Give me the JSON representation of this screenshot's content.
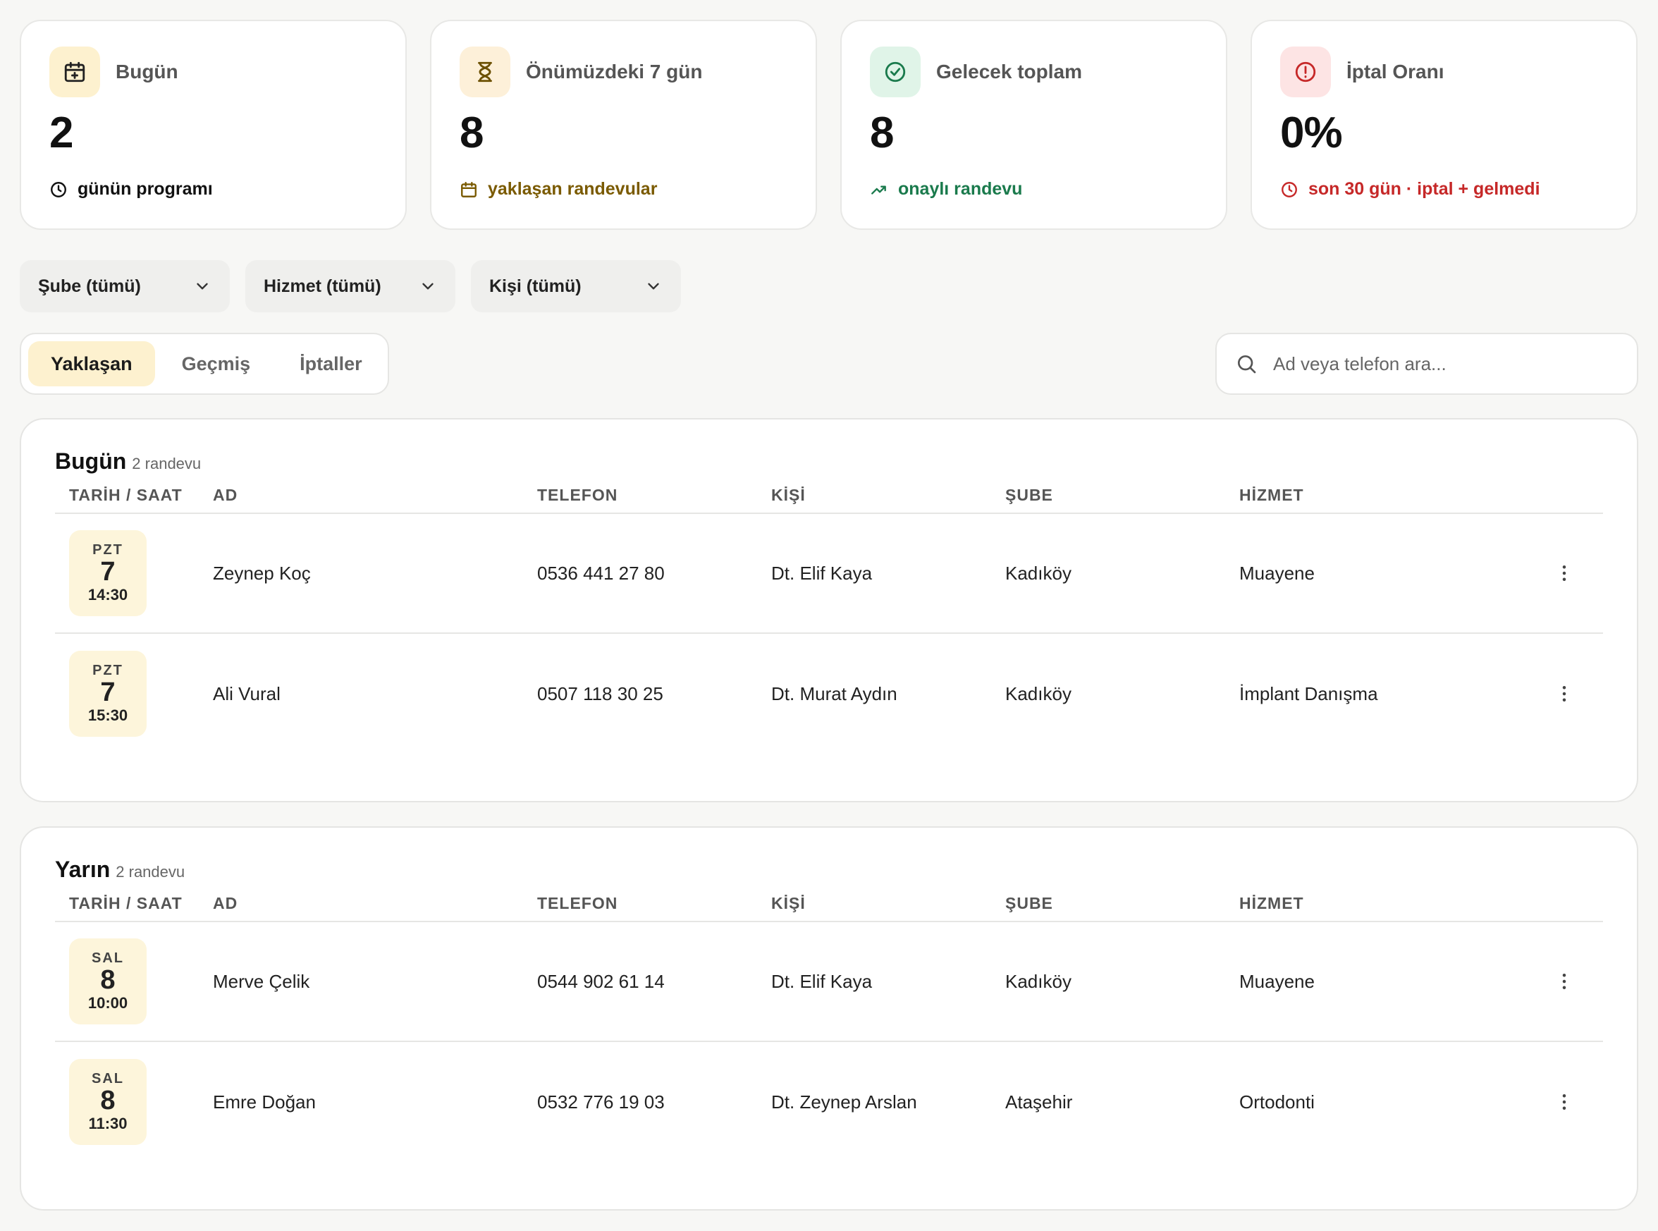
{
  "colors": {
    "accent_yellow": "#fdf1cf",
    "amber_text": "#7a5a00",
    "green_text": "#1a7a4c",
    "red_text": "#c62828"
  },
  "stats": [
    {
      "icon": "calendar-plus-icon",
      "title": "Bugün",
      "value": "2",
      "sub_icon": "clock-icon",
      "sub": "günün programı"
    },
    {
      "icon": "hourglass-icon",
      "title": "Önümüzdeki 7 gün",
      "value": "8",
      "sub_icon": "calendar-icon",
      "sub": "yaklaşan randevular"
    },
    {
      "icon": "check-circle-icon",
      "title": "Gelecek toplam",
      "value": "8",
      "sub_icon": "trending-up-icon",
      "sub": "onaylı randevu"
    },
    {
      "icon": "alert-circle-icon",
      "title": "İptal Oranı",
      "value": "0%",
      "sub_icon": "clock-icon",
      "sub": "son 30 gün · iptal + gelmedi"
    }
  ],
  "filters": [
    "Şube (tümü)",
    "Hizmet (tümü)",
    "Kişi (tümü)"
  ],
  "tabs": [
    {
      "label": "Yaklaşan",
      "active": true
    },
    {
      "label": "Geçmiş",
      "active": false
    },
    {
      "label": "İptaller",
      "active": false
    }
  ],
  "search": {
    "placeholder": "Ad veya telefon ara..."
  },
  "columns": [
    "TARİH / SAAT",
    "AD",
    "TELEFON",
    "KİŞİ",
    "ŞUBE",
    "HİZMET"
  ],
  "groups": [
    {
      "title": "Bugün",
      "count": "2 randevu",
      "rows": [
        {
          "dow": "PZT",
          "day": "7",
          "time": "14:30",
          "name": "Zeynep Koç",
          "phone": "0536 441 27 80",
          "person": "Dt. Elif Kaya",
          "branch": "Kadıköy",
          "service": "Muayene"
        },
        {
          "dow": "PZT",
          "day": "7",
          "time": "15:30",
          "name": "Ali Vural",
          "phone": "0507 118 30 25",
          "person": "Dt. Murat Aydın",
          "branch": "Kadıköy",
          "service": "İmplant Danışma"
        }
      ]
    },
    {
      "title": "Yarın",
      "count": "2 randevu",
      "rows": [
        {
          "dow": "SAL",
          "day": "8",
          "time": "10:00",
          "name": "Merve Çelik",
          "phone": "0544 902 61 14",
          "person": "Dt. Elif Kaya",
          "branch": "Kadıköy",
          "service": "Muayene"
        },
        {
          "dow": "SAL",
          "day": "8",
          "time": "11:30",
          "name": "Emre Doğan",
          "phone": "0532 776 19 03",
          "person": "Dt. Zeynep Arslan",
          "branch": "Ataşehir",
          "service": "Ortodonti"
        }
      ]
    }
  ]
}
